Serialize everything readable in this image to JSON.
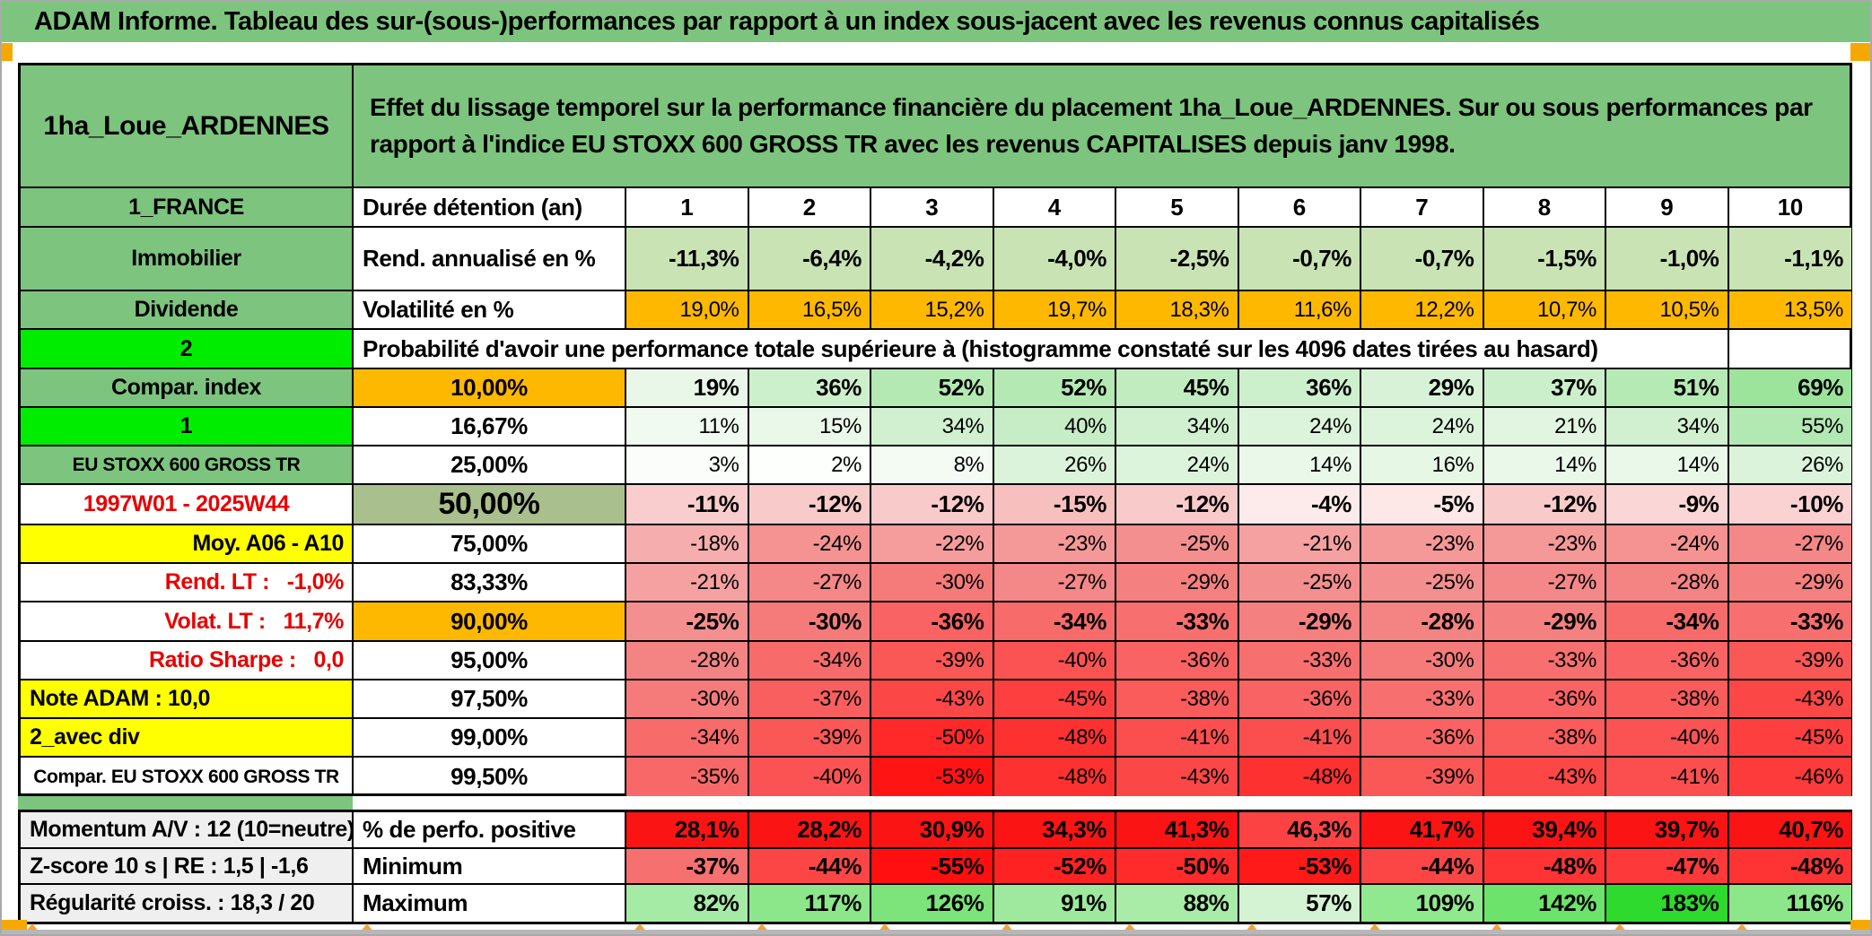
{
  "title": "ADAM Informe. Tableau des sur-(sous-)performances par rapport à un index sous-jacent avec les revenus connus capitalisés",
  "header": {
    "name": "1ha_Loue_ARDENNES",
    "description": "Effet du lissage temporel sur la performance financière du placement 1ha_Loue_ARDENNES. Sur ou sous performances par rapport à l'indice EU STOXX 600 GROSS TR avec les revenus CAPITALISES depuis janv 1998."
  },
  "colors": {
    "table_green": "#7dc47e",
    "bright_green": "#00ed00",
    "orange": "#feb800",
    "orange_marker": "#f7a800",
    "yellow": "#ffff00",
    "sage": "#a9bf8d",
    "light_green_row": "#c9e3b4",
    "red_text": "#e80000",
    "gray_label": "#efefef"
  },
  "duree": {
    "label": "1_FRANCE",
    "metric": "Durée détention (an)",
    "values": [
      "1",
      "2",
      "3",
      "4",
      "5",
      "6",
      "7",
      "8",
      "9",
      "10"
    ]
  },
  "rend": {
    "label": "Immobilier",
    "metric": "Rend. annualisé en %",
    "values": [
      "-11,3%",
      "-6,4%",
      "-4,2%",
      "-4,0%",
      "-2,5%",
      "-0,7%",
      "-0,7%",
      "-1,5%",
      "-1,0%",
      "-1,1%"
    ]
  },
  "volat": {
    "label": "Dividende",
    "metric": "Volatilité en %",
    "values": [
      "19,0%",
      "16,5%",
      "15,2%",
      "19,7%",
      "18,3%",
      "11,6%",
      "12,2%",
      "10,7%",
      "10,5%",
      "13,5%"
    ]
  },
  "prob_header": {
    "label": "2",
    "text": "Probabilité d'avoir une performance totale supérieure à (histogramme constaté sur les 4096 dates tirées au hasard)"
  },
  "prob_rows": [
    {
      "label": "Compar. index",
      "label_class": "green",
      "threshold": "10,00%",
      "threshold_class": "orange",
      "bold": true,
      "values": [
        "19%",
        "36%",
        "52%",
        "52%",
        "45%",
        "36%",
        "29%",
        "37%",
        "51%",
        "69%"
      ],
      "colors": [
        "#e8f7e8",
        "#cdf0cc",
        "#b4e9b3",
        "#b4e9b3",
        "#c0ecbf",
        "#cdf0cc",
        "#d8f2d7",
        "#ccefcb",
        "#b6eab5",
        "#9ce49b"
      ]
    },
    {
      "label": "1",
      "label_class": "bright",
      "threshold": "16,67%",
      "threshold_class": "white",
      "bold": false,
      "values": [
        "11%",
        "15%",
        "34%",
        "40%",
        "34%",
        "24%",
        "24%",
        "21%",
        "34%",
        "55%"
      ],
      "colors": [
        "#f0faf0",
        "#eaf8ea",
        "#d0f0cf",
        "#c7edc6",
        "#d0f0cf",
        "#ddf4dc",
        "#ddf4dc",
        "#e1f5e0",
        "#d0f0cf",
        "#b2e8b1"
      ]
    },
    {
      "label": "EU STOXX 600 GROSS TR",
      "label_class": "green-sm",
      "threshold": "25,00%",
      "threshold_class": "white",
      "bold": false,
      "values": [
        "3%",
        "2%",
        "8%",
        "26%",
        "24%",
        "14%",
        "16%",
        "14%",
        "14%",
        "26%"
      ],
      "colors": [
        "#fafdfa",
        "#fdfffd",
        "#f3fbf3",
        "#dbf3da",
        "#ddf4dc",
        "#eaf8ea",
        "#e7f7e6",
        "#eaf8ea",
        "#eaf8ea",
        "#dbf3da"
      ]
    },
    {
      "label": "1997W01 - 2025W44",
      "label_class": "redc",
      "threshold": "50,00%",
      "threshold_class": "sage",
      "bold": true,
      "values": [
        "-11%",
        "-12%",
        "-12%",
        "-15%",
        "-12%",
        "-4%",
        "-5%",
        "-12%",
        "-9%",
        "-10%"
      ],
      "colors": [
        "#f9cdcd",
        "#f9caca",
        "#f9caca",
        "#f8bfbf",
        "#f9caca",
        "#fdebeb",
        "#fde7e7",
        "#f9caca",
        "#fad6d6",
        "#fad2d2"
      ]
    },
    {
      "label": "Moy. A06 - A10",
      "label_class": "yellow-r",
      "threshold": "75,00%",
      "threshold_class": "white",
      "bold": false,
      "values": [
        "-18%",
        "-24%",
        "-22%",
        "-23%",
        "-25%",
        "-21%",
        "-23%",
        "-23%",
        "-24%",
        "-27%"
      ],
      "colors": [
        "#f6adad",
        "#f59393",
        "#f59d9d",
        "#f59898",
        "#f48f8f",
        "#f5a1a1",
        "#f59898",
        "#f59898",
        "#f59393",
        "#f48787"
      ]
    },
    {
      "label": "Rend. LT :   -1,0%",
      "label_class": "redr",
      "threshold": "83,33%",
      "threshold_class": "white",
      "bold": false,
      "values": [
        "-21%",
        "-27%",
        "-30%",
        "-27%",
        "-29%",
        "-25%",
        "-25%",
        "-27%",
        "-28%",
        "-29%"
      ],
      "colors": [
        "#f5a1a1",
        "#f48787",
        "#f57b7b",
        "#f48787",
        "#f58080",
        "#f48f8f",
        "#f48f8f",
        "#f48787",
        "#f48383",
        "#f58080"
      ]
    },
    {
      "label": "Volat. LT :   11,7%",
      "label_class": "redr",
      "threshold": "90,00%",
      "threshold_class": "orange",
      "bold": true,
      "values": [
        "-25%",
        "-30%",
        "-36%",
        "-34%",
        "-33%",
        "-29%",
        "-28%",
        "-29%",
        "-34%",
        "-33%"
      ],
      "colors": [
        "#f48f8f",
        "#f57b7b",
        "#f96363",
        "#f86b6b",
        "#f86f6f",
        "#f58080",
        "#f48383",
        "#f58080",
        "#f86b6b",
        "#f86f6f"
      ]
    },
    {
      "label": "Ratio Sharpe :   0,0",
      "label_class": "redr",
      "threshold": "95,00%",
      "threshold_class": "white",
      "bold": false,
      "values": [
        "-28%",
        "-34%",
        "-39%",
        "-40%",
        "-36%",
        "-33%",
        "-30%",
        "-33%",
        "-36%",
        "-39%"
      ],
      "colors": [
        "#f48383",
        "#f86b6b",
        "#fa5757",
        "#fb5353",
        "#f96363",
        "#f86f6f",
        "#f57b7b",
        "#f86f6f",
        "#f96363",
        "#fa5757"
      ]
    },
    {
      "label": "Note ADAM : 10,0",
      "label_class": "yellow-l",
      "threshold": "97,50%",
      "threshold_class": "white",
      "bold": false,
      "values": [
        "-30%",
        "-37%",
        "-43%",
        "-45%",
        "-38%",
        "-36%",
        "-33%",
        "-36%",
        "-38%",
        "-43%"
      ],
      "colors": [
        "#f57b7b",
        "#f95f5f",
        "#fc4747",
        "#fd3f3f",
        "#fa5b5b",
        "#f96363",
        "#f86f6f",
        "#f96363",
        "#fa5b5b",
        "#fc4747"
      ]
    },
    {
      "label": "2_avec div",
      "label_class": "yellow-l",
      "threshold": "99,00%",
      "threshold_class": "white",
      "bold": false,
      "values": [
        "-34%",
        "-39%",
        "-50%",
        "-48%",
        "-41%",
        "-41%",
        "-36%",
        "-38%",
        "-40%",
        "-45%"
      ],
      "colors": [
        "#f86b6b",
        "#fa5757",
        "#ff2929",
        "#fe3131",
        "#fb4f4f",
        "#fb4f4f",
        "#f96363",
        "#fa5b5b",
        "#fb5353",
        "#fd3f3f"
      ]
    },
    {
      "label": "Compar. EU STOXX 600 GROSS TR",
      "label_class": "white-bc",
      "threshold": "99,50%",
      "threshold_class": "white",
      "bold": false,
      "values": [
        "-35%",
        "-40%",
        "-53%",
        "-48%",
        "-43%",
        "-48%",
        "-39%",
        "-43%",
        "-41%",
        "-46%"
      ],
      "colors": [
        "#f86868",
        "#fb5353",
        "#ff1414",
        "#fe3131",
        "#fc4747",
        "#fe3131",
        "#fa5757",
        "#fc4747",
        "#fb4f4f",
        "#fd3b3b"
      ]
    }
  ],
  "bottom_rows": [
    {
      "label": "Momentum A/V : 12 (10=neutre)",
      "metric": "% de perfo. positive",
      "values": [
        "28,1%",
        "28,2%",
        "30,9%",
        "34,3%",
        "41,3%",
        "46,3%",
        "41,7%",
        "39,4%",
        "39,7%",
        "40,7%"
      ],
      "colors": [
        "#fb1414",
        "#fb1414",
        "#fb1414",
        "#fb1414",
        "#fb1414",
        "#fc4343",
        "#fb1414",
        "#fb1414",
        "#fb1414",
        "#fb1414"
      ]
    },
    {
      "label": "Z-score 10 s | RE : 1,5 | -1,6",
      "metric": "Minimum",
      "values": [
        "-37%",
        "-44%",
        "-55%",
        "-52%",
        "-50%",
        "-53%",
        "-44%",
        "-48%",
        "-47%",
        "-48%"
      ],
      "colors": [
        "#f77070",
        "#fc4646",
        "#ff0f0f",
        "#ff2222",
        "#ff2a2a",
        "#ff1a1a",
        "#fc4646",
        "#fe3434",
        "#fe3939",
        "#fe3434"
      ]
    },
    {
      "label": "Régularité croiss. : 18,3 / 20",
      "metric": "Maximum",
      "values": [
        "82%",
        "117%",
        "126%",
        "91%",
        "88%",
        "57%",
        "109%",
        "142%",
        "183%",
        "116%"
      ],
      "colors": [
        "#a6eba5",
        "#8ce78b",
        "#7ce47b",
        "#9ee99d",
        "#a8eca7",
        "#d4f3d3",
        "#90e88f",
        "#6ce36a",
        "#2eda2e",
        "#8be78a"
      ]
    }
  ]
}
